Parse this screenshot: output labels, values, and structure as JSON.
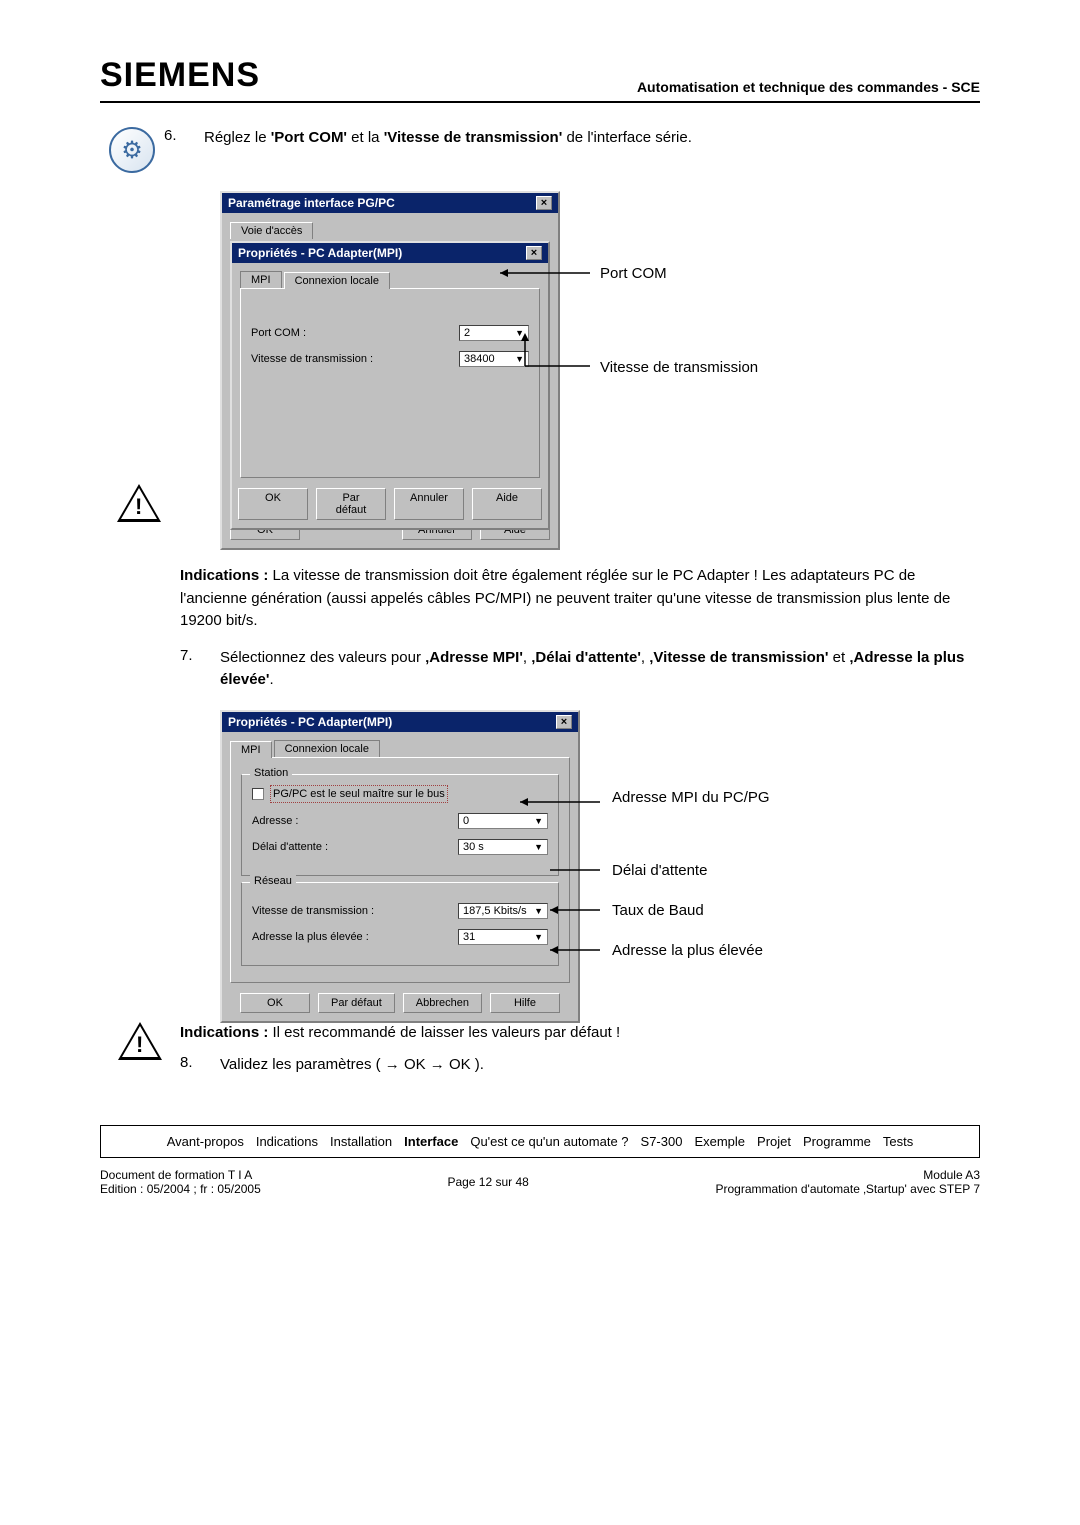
{
  "header": {
    "brand": "SIEMENS",
    "right": "Automatisation et technique des commandes - SCE"
  },
  "step6": {
    "num": "6.",
    "text_before": "Réglez le ",
    "bold1": "'Port COM'",
    "mid": " et la ",
    "bold2": "'Vitesse de transmission'",
    "after": " de l'interface série."
  },
  "dlg1_outer": {
    "title": "Paramétrage interface PG/PC",
    "tab": "Voie d'accès",
    "ok": "OK",
    "cancel": "Annuler",
    "help": "Aide"
  },
  "dlg1_inner": {
    "title": "Propriétés - PC Adapter(MPI)",
    "tab1": "MPI",
    "tab2": "Connexion locale",
    "port_label": "Port COM :",
    "port_value": "2",
    "speed_label": "Vitesse de transmission :",
    "speed_value": "38400",
    "ok": "OK",
    "default": "Par défaut",
    "cancel": "Annuler",
    "help": "Aide"
  },
  "annot1": {
    "port": "Port COM",
    "speed": "Vitesse de transmission"
  },
  "indic1": {
    "lead": "Indications :",
    "text": " La vitesse de transmission doit être également réglée sur le PC Adapter ! Les adaptateurs PC de l'ancienne génération (aussi appelés câbles PC/MPI) ne peuvent traiter qu'une vitesse de transmission plus lente de 19200 bit/s."
  },
  "step7": {
    "num": "7.",
    "t1": "Sélectionnez des valeurs pour ",
    "b1": "‚Adresse MPI'",
    "c1": ", ",
    "b2": "‚Délai d'attente'",
    "c2": ", ",
    "b3": "‚Vitesse de transmission'",
    "c3": " et ",
    "b4": "‚Adresse la plus élevée'",
    "c4": "."
  },
  "dlg2": {
    "title": "Propriétés - PC Adapter(MPI)",
    "tab1": "MPI",
    "tab2": "Connexion locale",
    "grp_station": "Station",
    "chk_label": "PG/PC est le seul maître sur le bus",
    "addr_label": "Adresse :",
    "addr_value": "0",
    "wait_label": "Délai d'attente :",
    "wait_value": "30 s",
    "grp_net": "Réseau",
    "speed_label": "Vitesse de transmission :",
    "speed_value": "187,5 Kbits/s",
    "high_label": "Adresse la plus élevée :",
    "high_value": "31",
    "ok": "OK",
    "default": "Par défaut",
    "cancel": "Abbrechen",
    "help": "Hilfe"
  },
  "annot2": {
    "a": "Adresse MPI du PC/PG",
    "b": "Délai d'attente",
    "c": "Taux de Baud",
    "d": "Adresse la plus élevée"
  },
  "indic2": {
    "lead": "Indications :",
    "text": " Il est recommandé de laisser les valeurs par défaut !"
  },
  "step8": {
    "num": "8.",
    "text": "Validez les paramètres ( → OK → OK )."
  },
  "nav": {
    "items": [
      "Avant-propos",
      "Indications",
      "Installation",
      "Interface",
      "Qu'est ce qu'un automate ?",
      "S7-300",
      "Exemple",
      "Projet",
      "Programme",
      "Tests"
    ],
    "active_index": 3
  },
  "footer": {
    "l1": "Document de formation T I A",
    "l2": "Edition : 05/2004 ; fr : 05/2005",
    "mid": "Page 12 sur 48",
    "r1": "Module A3",
    "r2": "Programmation d'automate ‚Startup' avec STEP 7"
  },
  "colors": {
    "titlebar": "#0a246a",
    "dialog_bg": "#c0c0c0"
  }
}
